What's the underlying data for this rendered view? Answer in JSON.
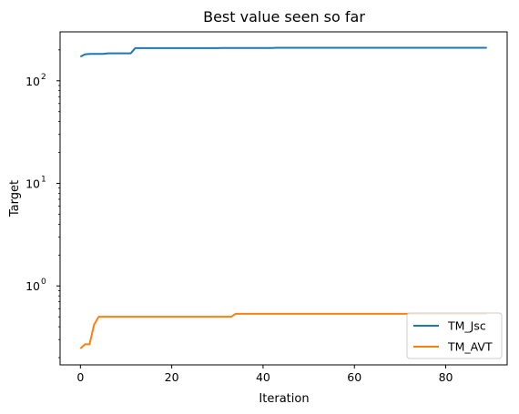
{
  "chart_data": {
    "type": "line",
    "title": "Best value seen so far",
    "xlabel": "Iteration",
    "ylabel": "Target",
    "yscale": "log",
    "xlim": [
      -4.45,
      93.45
    ],
    "ylim": [
      0.17,
      300
    ],
    "xticks": [
      0,
      20,
      40,
      60,
      80
    ],
    "yticks": [
      {
        "value": 1,
        "base": "10",
        "exp": "0"
      },
      {
        "value": 10,
        "base": "10",
        "exp": "1"
      },
      {
        "value": 100,
        "base": "10",
        "exp": "2"
      }
    ],
    "grid": false,
    "legend_position": "lower-right",
    "series": [
      {
        "name": "TM_Jsc",
        "color": "#1f77b4",
        "points": [
          [
            0,
            172
          ],
          [
            1,
            181
          ],
          [
            2,
            183
          ],
          [
            5,
            183
          ],
          [
            6,
            185
          ],
          [
            11,
            185
          ],
          [
            12,
            208
          ],
          [
            30,
            208
          ],
          [
            31,
            209
          ],
          [
            42,
            209
          ],
          [
            43,
            210
          ],
          [
            89,
            210
          ]
        ]
      },
      {
        "name": "TM_AVT",
        "color": "#ff7f0e",
        "points": [
          [
            0,
            0.245
          ],
          [
            1,
            0.27
          ],
          [
            2,
            0.27
          ],
          [
            3,
            0.42
          ],
          [
            4,
            0.5
          ],
          [
            33,
            0.5
          ],
          [
            34,
            0.535
          ],
          [
            89,
            0.535
          ]
        ]
      }
    ]
  }
}
